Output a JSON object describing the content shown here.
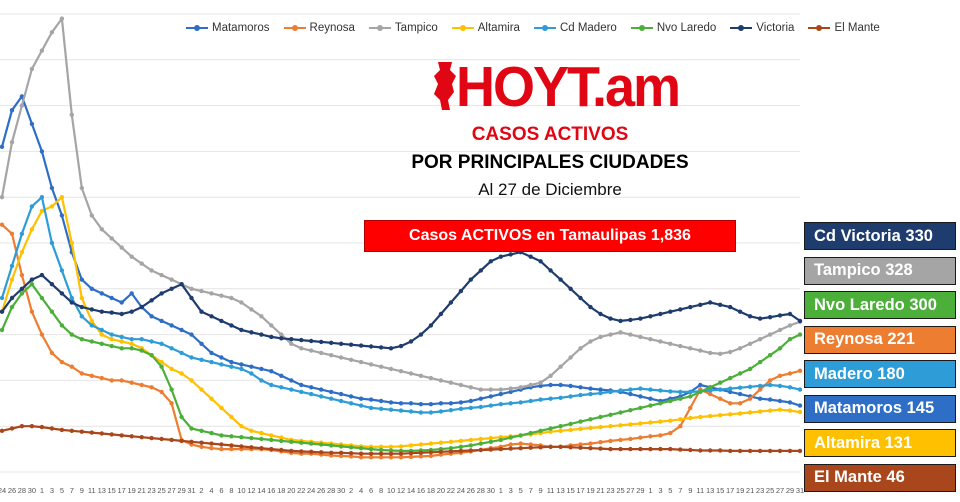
{
  "legend": [
    {
      "name": "Matamoros",
      "color": "#2e6ec6"
    },
    {
      "name": "Reynosa",
      "color": "#ed7d31"
    },
    {
      "name": "Tampico",
      "color": "#a5a5a5"
    },
    {
      "name": "Altamira",
      "color": "#ffc000"
    },
    {
      "name": "Cd Madero",
      "color": "#2e9cd6"
    },
    {
      "name": "Nvo Laredo",
      "color": "#4caf3a"
    },
    {
      "name": "Victoria",
      "color": "#1f3c6e"
    },
    {
      "name": "El Mante",
      "color": "#a9461b"
    }
  ],
  "logo": {
    "text": "HOYT.am"
  },
  "headings": {
    "red": "CASOS ACTIVOS",
    "main": "POR PRINCIPALES CIUDADES",
    "date": "Al 27 de Diciembre"
  },
  "total_box": {
    "text": "Casos ACTIVOS en Tamaulipas  1,836"
  },
  "city_labels": [
    {
      "text": "Cd Victoria 330",
      "color": "#1f3c6e",
      "dark": false
    },
    {
      "text": "Tampico 328",
      "color": "#a5a5a5",
      "dark": false
    },
    {
      "text": "Nvo Laredo 300",
      "color": "#4caf3a",
      "dark": false
    },
    {
      "text": "Reynosa 221",
      "color": "#ed7d31",
      "dark": false
    },
    {
      "text": "Madero 180",
      "color": "#2e9cd6",
      "dark": false
    },
    {
      "text": "Matamoros 145",
      "color": "#2e6ec6",
      "dark": false
    },
    {
      "text": "Altamira 131",
      "color": "#ffc000",
      "dark": false
    },
    {
      "text": "El Mante 46",
      "color": "#a9461b",
      "dark": false
    }
  ],
  "chart_data": {
    "type": "line",
    "title": "",
    "xlabel": "",
    "ylabel": "",
    "grid": true,
    "legend_position": "top",
    "ylim": [
      0,
      1000
    ],
    "x": [
      "24",
      "26",
      "28",
      "30",
      "1",
      "3",
      "5",
      "7",
      "9",
      "11",
      "13",
      "15",
      "17",
      "19",
      "21",
      "23",
      "25",
      "27",
      "29",
      "31",
      "2",
      "4",
      "6",
      "8",
      "10",
      "12",
      "14",
      "16",
      "18",
      "20",
      "22",
      "24",
      "26",
      "28",
      "30",
      "2",
      "4",
      "6",
      "8",
      "10",
      "12",
      "14",
      "16",
      "18",
      "20",
      "22",
      "24",
      "26",
      "28",
      "30",
      "1",
      "3",
      "5",
      "7",
      "9",
      "11",
      "13",
      "15",
      "17",
      "19",
      "21",
      "23",
      "25",
      "27",
      "29",
      "1",
      "3",
      "5",
      "7",
      "9",
      "11",
      "13",
      "15",
      "17",
      "19",
      "21",
      "23",
      "25",
      "27",
      "29",
      "31"
    ],
    "series": [
      {
        "name": "Matamoros",
        "color": "#2e6ec6",
        "values": [
          710,
          790,
          820,
          760,
          700,
          620,
          560,
          480,
          420,
          400,
          390,
          380,
          370,
          390,
          360,
          340,
          330,
          320,
          310,
          300,
          280,
          260,
          250,
          240,
          235,
          230,
          225,
          220,
          210,
          200,
          190,
          185,
          180,
          175,
          170,
          165,
          160,
          158,
          155,
          152,
          150,
          150,
          148,
          148,
          150,
          150,
          152,
          155,
          160,
          165,
          170,
          175,
          180,
          185,
          188,
          190,
          190,
          188,
          185,
          182,
          180,
          178,
          175,
          170,
          165,
          160,
          155,
          160,
          165,
          175,
          190,
          185,
          180,
          175,
          170,
          165,
          160,
          158,
          155,
          152,
          145
        ]
      },
      {
        "name": "Reynosa",
        "color": "#ed7d31",
        "values": [
          540,
          520,
          430,
          350,
          300,
          260,
          240,
          230,
          215,
          210,
          205,
          200,
          200,
          195,
          190,
          185,
          175,
          150,
          70,
          60,
          55,
          52,
          50,
          50,
          50,
          50,
          50,
          48,
          45,
          42,
          40,
          40,
          38,
          36,
          35,
          34,
          32,
          32,
          32,
          32,
          32,
          33,
          34,
          35,
          38,
          40,
          42,
          45,
          48,
          52,
          55,
          60,
          62,
          60,
          58,
          55,
          55,
          58,
          60,
          62,
          65,
          68,
          70,
          72,
          75,
          78,
          80,
          85,
          100,
          140,
          180,
          170,
          160,
          150,
          150,
          160,
          180,
          200,
          210,
          215,
          221
        ]
      },
      {
        "name": "Tampico",
        "color": "#a5a5a5",
        "values": [
          600,
          720,
          800,
          880,
          920,
          960,
          990,
          780,
          620,
          560,
          530,
          510,
          490,
          470,
          455,
          440,
          430,
          420,
          410,
          400,
          395,
          390,
          385,
          380,
          370,
          355,
          340,
          320,
          300,
          280,
          270,
          265,
          260,
          255,
          250,
          245,
          240,
          235,
          230,
          225,
          220,
          215,
          210,
          205,
          200,
          195,
          190,
          185,
          180,
          180,
          180,
          182,
          185,
          190,
          195,
          210,
          230,
          250,
          270,
          285,
          295,
          300,
          305,
          300,
          295,
          290,
          285,
          280,
          275,
          270,
          265,
          260,
          258,
          262,
          270,
          280,
          290,
          300,
          310,
          320,
          328
        ]
      },
      {
        "name": "Altamira",
        "color": "#ffc000",
        "values": [
          350,
          420,
          480,
          530,
          570,
          580,
          600,
          500,
          380,
          330,
          300,
          290,
          285,
          280,
          270,
          255,
          240,
          225,
          215,
          200,
          180,
          160,
          140,
          120,
          100,
          90,
          85,
          80,
          75,
          70,
          68,
          66,
          64,
          62,
          60,
          58,
          56,
          55,
          55,
          55,
          56,
          58,
          60,
          62,
          64,
          66,
          68,
          70,
          72,
          74,
          76,
          78,
          80,
          82,
          85,
          88,
          90,
          92,
          94,
          96,
          98,
          100,
          102,
          104,
          106,
          108,
          110,
          112,
          115,
          118,
          120,
          122,
          124,
          126,
          128,
          130,
          132,
          134,
          136,
          134,
          131
        ]
      },
      {
        "name": "Cd Madero",
        "color": "#2e9cd6",
        "values": [
          380,
          450,
          520,
          580,
          600,
          500,
          440,
          380,
          340,
          320,
          310,
          300,
          295,
          290,
          290,
          285,
          280,
          270,
          260,
          250,
          245,
          240,
          235,
          230,
          225,
          215,
          200,
          190,
          185,
          180,
          175,
          170,
          165,
          160,
          155,
          150,
          145,
          140,
          138,
          136,
          134,
          132,
          130,
          130,
          132,
          135,
          138,
          140,
          142,
          145,
          148,
          150,
          152,
          155,
          158,
          160,
          162,
          165,
          168,
          170,
          172,
          175,
          178,
          180,
          182,
          180,
          178,
          176,
          175,
          175,
          176,
          178,
          180,
          182,
          184,
          186,
          188,
          190,
          188,
          185,
          180
        ]
      },
      {
        "name": "Nvo Laredo",
        "color": "#4caf3a",
        "values": [
          310,
          360,
          390,
          410,
          380,
          350,
          320,
          300,
          290,
          285,
          280,
          275,
          270,
          270,
          265,
          255,
          230,
          180,
          120,
          95,
          90,
          85,
          80,
          78,
          76,
          74,
          72,
          70,
          68,
          66,
          64,
          62,
          60,
          58,
          56,
          54,
          52,
          50,
          48,
          47,
          46,
          46,
          47,
          48,
          50,
          52,
          55,
          58,
          62,
          66,
          70,
          75,
          80,
          85,
          90,
          95,
          100,
          105,
          110,
          115,
          120,
          125,
          130,
          135,
          140,
          145,
          150,
          155,
          160,
          165,
          175,
          185,
          195,
          205,
          215,
          225,
          240,
          255,
          270,
          290,
          300
        ]
      },
      {
        "name": "Victoria",
        "color": "#1f3c6e",
        "values": [
          350,
          380,
          400,
          420,
          430,
          410,
          390,
          370,
          360,
          355,
          350,
          348,
          345,
          350,
          360,
          375,
          390,
          400,
          410,
          380,
          350,
          340,
          330,
          320,
          310,
          305,
          300,
          295,
          292,
          290,
          288,
          286,
          284,
          282,
          280,
          278,
          276,
          274,
          272,
          270,
          275,
          285,
          300,
          320,
          345,
          370,
          395,
          420,
          440,
          460,
          470,
          475,
          480,
          470,
          460,
          440,
          420,
          400,
          380,
          360,
          345,
          335,
          330,
          332,
          335,
          340,
          345,
          350,
          355,
          360,
          365,
          370,
          365,
          360,
          350,
          340,
          335,
          338,
          342,
          345,
          330
        ]
      },
      {
        "name": "El Mante",
        "color": "#a9461b",
        "values": [
          90,
          95,
          100,
          100,
          98,
          95,
          92,
          90,
          88,
          86,
          84,
          82,
          80,
          78,
          76,
          74,
          72,
          70,
          68,
          66,
          64,
          62,
          60,
          58,
          56,
          54,
          52,
          50,
          48,
          46,
          45,
          44,
          43,
          42,
          42,
          41,
          40,
          40,
          40,
          40,
          40,
          41,
          42,
          43,
          44,
          45,
          46,
          47,
          48,
          49,
          50,
          51,
          52,
          53,
          54,
          55,
          55,
          54,
          53,
          52,
          51,
          50,
          50,
          50,
          50,
          50,
          50,
          50,
          49,
          48,
          47,
          47,
          47,
          46,
          46,
          46,
          46,
          46,
          46,
          46,
          46
        ]
      }
    ]
  }
}
